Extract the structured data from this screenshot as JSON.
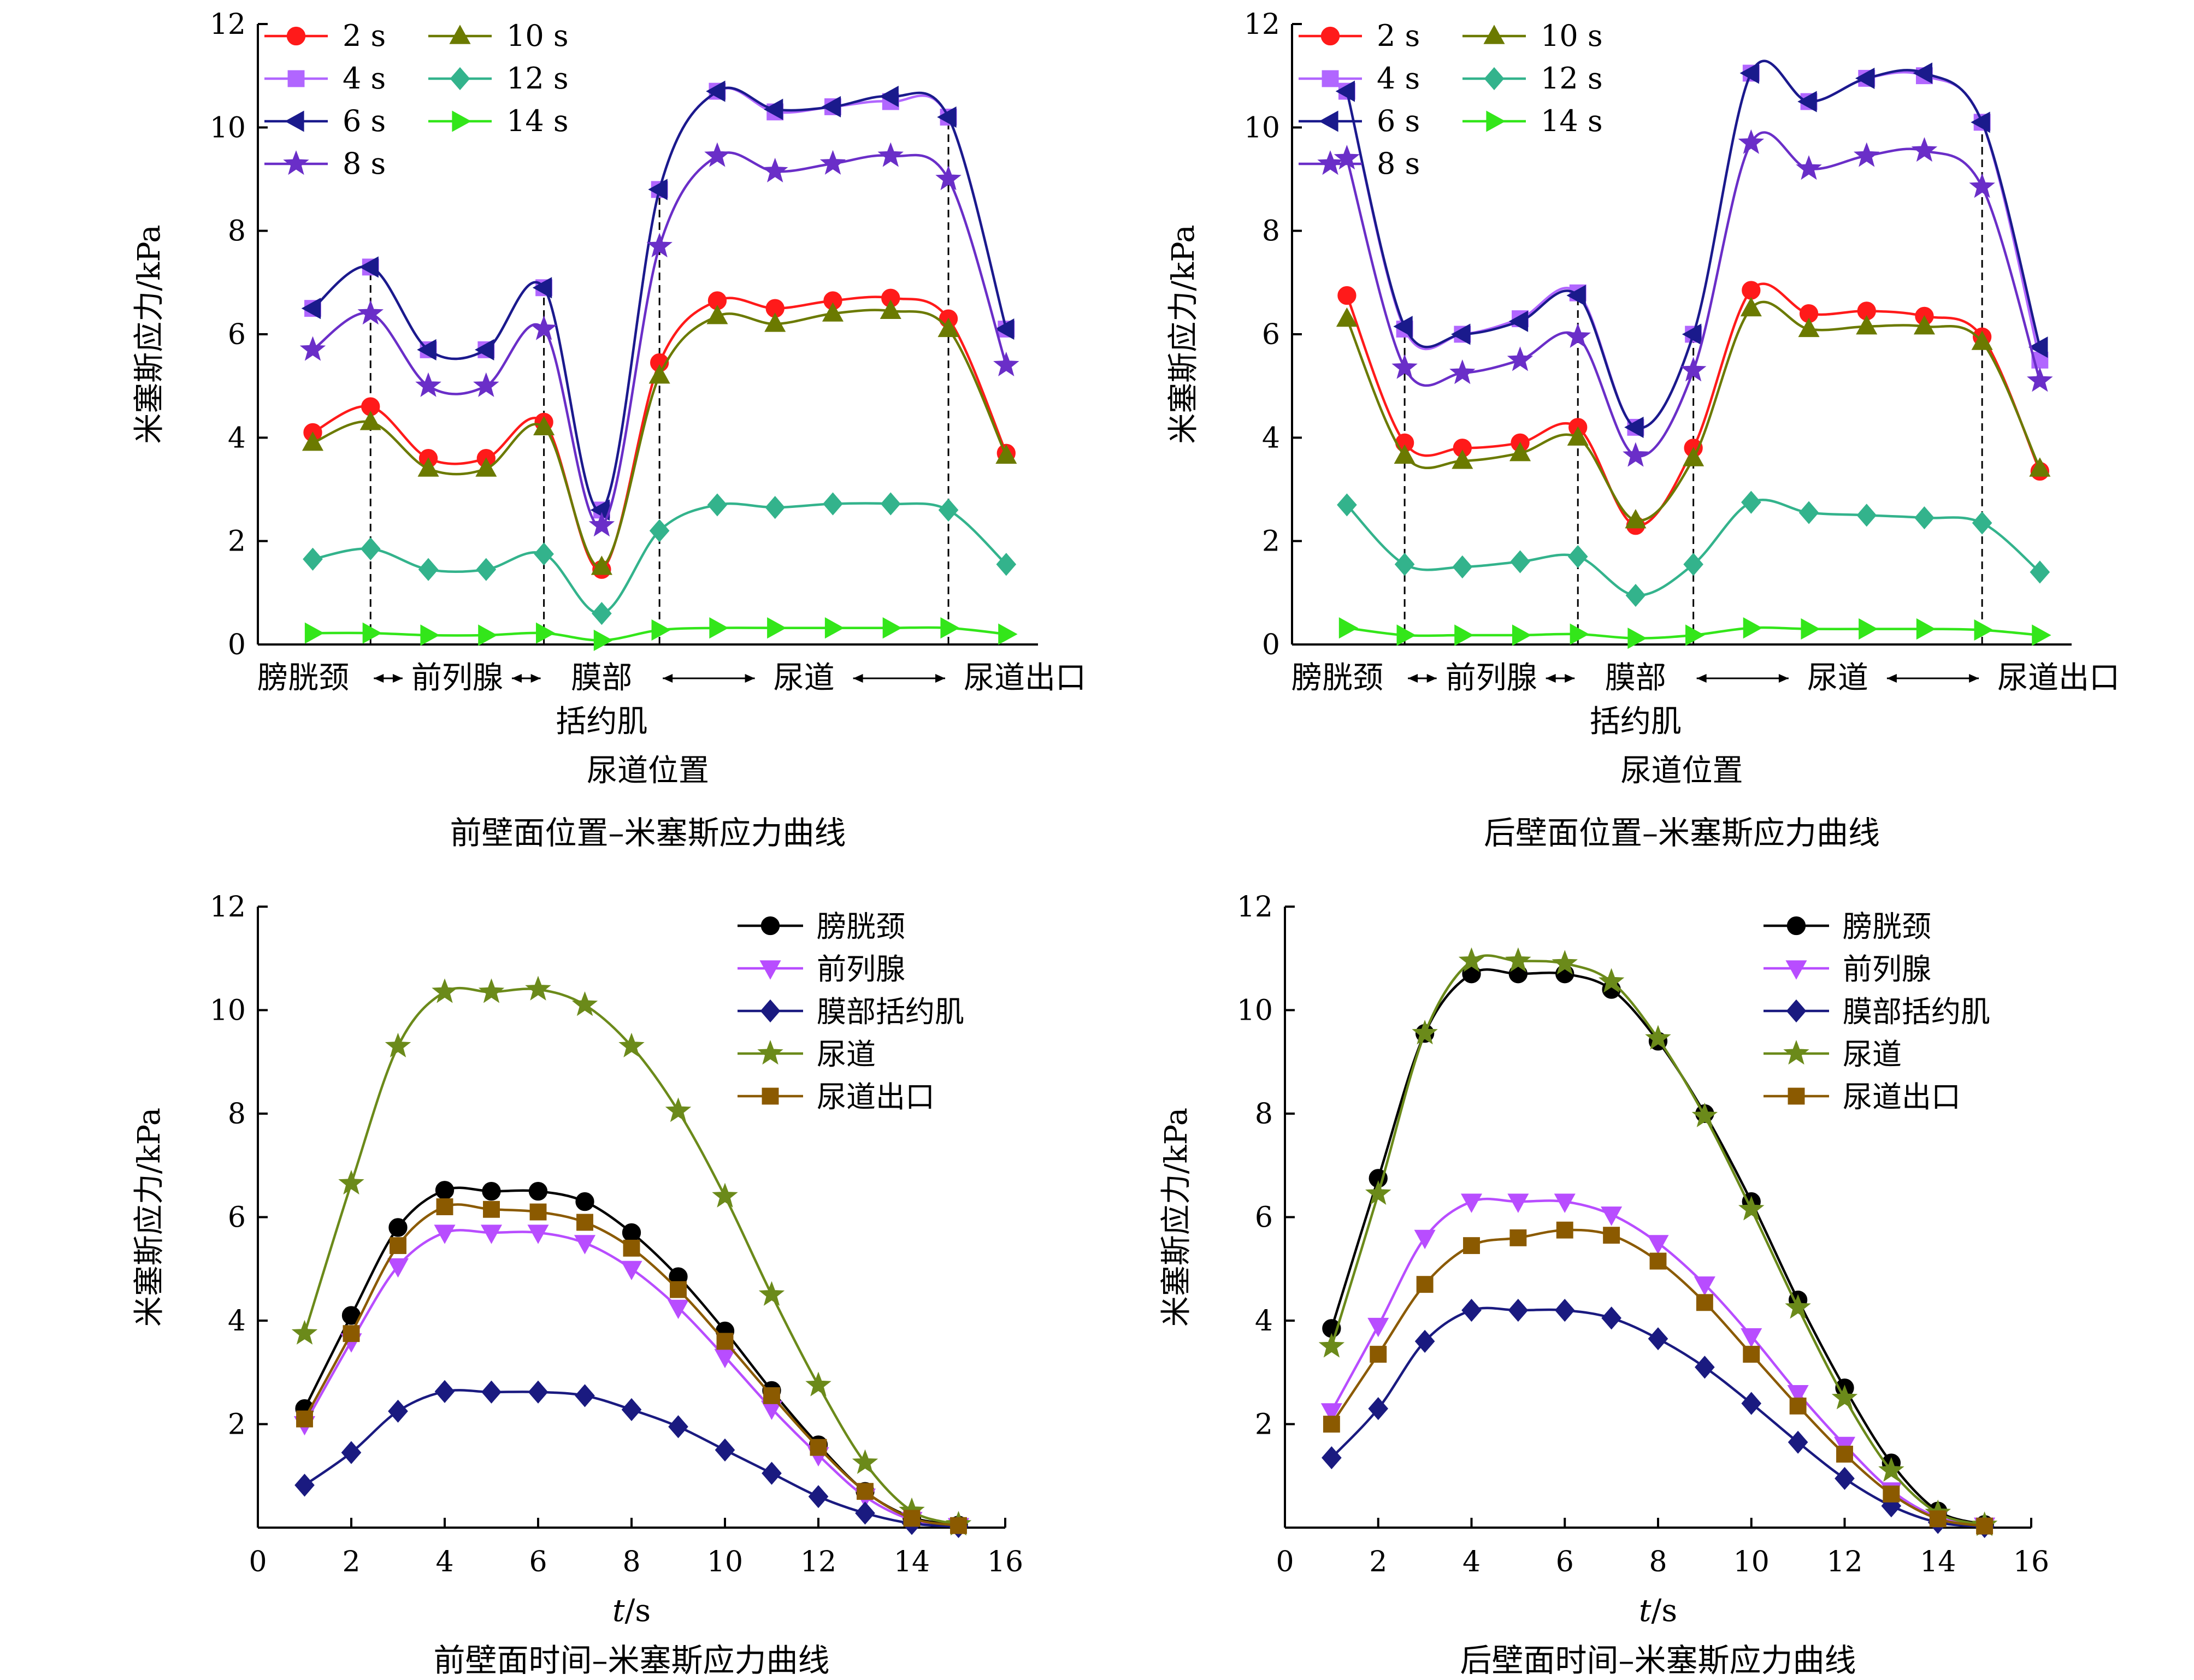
{
  "chart_data": [
    {
      "type": "line",
      "title": "前壁面位置–米塞斯应力曲线",
      "xlabel": "尿道位置",
      "ylabel": "米塞斯应力/kPa",
      "ylim": [
        0,
        12
      ],
      "yticks": [
        "0",
        "2",
        "4",
        "6",
        "8",
        "10",
        "12"
      ],
      "legend": "top-left, two columns",
      "regions": [
        {
          "label": "膀胱颈"
        },
        {
          "label": "前列腺"
        },
        {
          "label": "膜部",
          "label2": "括约肌"
        },
        {
          "label": "尿道"
        },
        {
          "label": "尿道出口"
        }
      ],
      "region_boundaries": [
        2,
        5,
        7,
        12
      ],
      "x": [
        1,
        2,
        3,
        4,
        5,
        6,
        7,
        8,
        9,
        10,
        11,
        12,
        13
      ],
      "series": [
        {
          "name": "2 s",
          "color": "#ff1a1a",
          "marker": "circle",
          "values": [
            4.1,
            4.6,
            3.6,
            3.6,
            4.3,
            1.45,
            5.45,
            6.65,
            6.5,
            6.65,
            6.7,
            6.3,
            3.7
          ]
        },
        {
          "name": "4 s",
          "color": "#b166ff",
          "marker": "square",
          "values": [
            6.5,
            7.3,
            5.7,
            5.7,
            6.9,
            2.6,
            8.8,
            10.7,
            10.3,
            10.4,
            10.5,
            10.2,
            6.1
          ]
        },
        {
          "name": "6 s",
          "color": "#1a1a8c",
          "marker": "triangle-left",
          "values": [
            6.5,
            7.3,
            5.7,
            5.7,
            6.9,
            2.6,
            8.8,
            10.7,
            10.35,
            10.4,
            10.6,
            10.2,
            6.1
          ]
        },
        {
          "name": "8 s",
          "color": "#6a2ec8",
          "marker": "star",
          "values": [
            5.7,
            6.4,
            5.0,
            5.0,
            6.1,
            2.3,
            7.7,
            9.45,
            9.15,
            9.3,
            9.45,
            9.0,
            5.4
          ]
        },
        {
          "name": "10 s",
          "color": "#6b7a00",
          "marker": "triangle-up",
          "values": [
            3.9,
            4.3,
            3.4,
            3.4,
            4.2,
            1.5,
            5.2,
            6.35,
            6.2,
            6.4,
            6.45,
            6.1,
            3.65
          ]
        },
        {
          "name": "12 s",
          "color": "#33b38c",
          "marker": "diamond",
          "values": [
            1.65,
            1.85,
            1.45,
            1.45,
            1.75,
            0.6,
            2.2,
            2.7,
            2.65,
            2.72,
            2.72,
            2.6,
            1.55
          ]
        },
        {
          "name": "14 s",
          "color": "#33e61a",
          "marker": "triangle-right",
          "values": [
            0.22,
            0.22,
            0.18,
            0.18,
            0.22,
            0.08,
            0.28,
            0.32,
            0.32,
            0.32,
            0.32,
            0.32,
            0.2
          ]
        }
      ]
    },
    {
      "type": "line",
      "title": "后壁面位置–米塞斯应力曲线",
      "xlabel": "尿道位置",
      "ylabel": "米塞斯应力/kPa",
      "ylim": [
        0,
        12
      ],
      "yticks": [
        "0",
        "2",
        "4",
        "6",
        "8",
        "10",
        "12"
      ],
      "legend": "top-left, two columns",
      "regions": [
        {
          "label": "膀胱颈"
        },
        {
          "label": "前列腺"
        },
        {
          "label": "膜部",
          "label2": "括约肌"
        },
        {
          "label": "尿道"
        },
        {
          "label": "尿道出口"
        }
      ],
      "region_boundaries": [
        2,
        5,
        7,
        12
      ],
      "x": [
        1,
        2,
        3,
        4,
        5,
        6,
        7,
        8,
        9,
        10,
        11,
        12,
        13
      ],
      "series": [
        {
          "name": "2 s",
          "color": "#ff1a1a",
          "marker": "circle",
          "values": [
            6.75,
            3.9,
            3.8,
            3.9,
            4.2,
            2.3,
            3.8,
            6.85,
            6.4,
            6.45,
            6.35,
            5.95,
            3.35
          ]
        },
        {
          "name": "4 s",
          "color": "#b166ff",
          "marker": "square",
          "values": [
            10.7,
            6.1,
            6.0,
            6.3,
            6.8,
            4.2,
            6.0,
            11.05,
            10.5,
            10.95,
            11.0,
            10.1,
            5.5
          ]
        },
        {
          "name": "6 s",
          "color": "#1a1a8c",
          "marker": "triangle-left",
          "values": [
            10.7,
            6.15,
            6.0,
            6.25,
            6.75,
            4.2,
            6.0,
            11.05,
            10.5,
            10.95,
            11.05,
            10.1,
            5.75
          ]
        },
        {
          "name": "8 s",
          "color": "#6a2ec8",
          "marker": "star",
          "values": [
            9.4,
            5.35,
            5.25,
            5.5,
            5.95,
            3.65,
            5.3,
            9.7,
            9.2,
            9.45,
            9.55,
            8.85,
            5.1
          ]
        },
        {
          "name": "10 s",
          "color": "#6b7a00",
          "marker": "triangle-up",
          "values": [
            6.3,
            3.65,
            3.55,
            3.7,
            4.0,
            2.4,
            3.6,
            6.5,
            6.1,
            6.15,
            6.15,
            5.85,
            3.4
          ]
        },
        {
          "name": "12 s",
          "color": "#33b38c",
          "marker": "diamond",
          "values": [
            2.7,
            1.55,
            1.5,
            1.6,
            1.7,
            0.95,
            1.55,
            2.75,
            2.55,
            2.5,
            2.45,
            2.35,
            1.4
          ]
        },
        {
          "name": "14 s",
          "color": "#33e61a",
          "marker": "triangle-right",
          "values": [
            0.32,
            0.18,
            0.18,
            0.18,
            0.2,
            0.12,
            0.18,
            0.32,
            0.3,
            0.3,
            0.3,
            0.28,
            0.18
          ]
        }
      ]
    },
    {
      "type": "line",
      "title": "前壁面时间–米塞斯应力曲线",
      "xlabel_italic": "t",
      "xlabel_unit": "/s",
      "ylabel": "米塞斯应力/kPa",
      "xlim": [
        0,
        16
      ],
      "ylim": [
        0,
        12
      ],
      "xticks": [
        "0",
        "2",
        "4",
        "6",
        "8",
        "10",
        "12",
        "14",
        "16"
      ],
      "yticks": [
        "2",
        "4",
        "6",
        "8",
        "10",
        "12"
      ],
      "legend": "top-right",
      "x": [
        1,
        2,
        3,
        4,
        5,
        6,
        7,
        8,
        9,
        10,
        11,
        12,
        13,
        14,
        15
      ],
      "series": [
        {
          "name": "膀胱颈",
          "color": "#000000",
          "marker": "circle",
          "values": [
            2.3,
            4.1,
            5.8,
            6.52,
            6.5,
            6.5,
            6.3,
            5.7,
            4.85,
            3.8,
            2.65,
            1.6,
            0.7,
            0.2,
            0.05
          ]
        },
        {
          "name": "前列腺",
          "color": "#b84dff",
          "marker": "triangle-down",
          "values": [
            2.0,
            3.6,
            5.05,
            5.7,
            5.7,
            5.7,
            5.5,
            5.0,
            4.25,
            3.3,
            2.3,
            1.4,
            0.6,
            0.15,
            0.03
          ]
        },
        {
          "name": "膜部括约肌",
          "color": "#1a1a80",
          "marker": "diamond",
          "values": [
            0.82,
            1.45,
            2.25,
            2.63,
            2.62,
            2.62,
            2.55,
            2.28,
            1.95,
            1.5,
            1.05,
            0.6,
            0.28,
            0.08,
            0.02
          ]
        },
        {
          "name": "尿道",
          "color": "#6b8a1a",
          "marker": "star",
          "values": [
            3.75,
            6.65,
            9.3,
            10.35,
            10.35,
            10.4,
            10.1,
            9.3,
            8.05,
            6.4,
            4.5,
            2.75,
            1.25,
            0.32,
            0.06
          ]
        },
        {
          "name": "尿道出口",
          "color": "#8b5a00",
          "marker": "square",
          "values": [
            2.1,
            3.75,
            5.45,
            6.2,
            6.15,
            6.1,
            5.9,
            5.4,
            4.6,
            3.6,
            2.55,
            1.55,
            0.7,
            0.18,
            0.04
          ]
        }
      ]
    },
    {
      "type": "line",
      "title": "后壁面时间–米塞斯应力曲线",
      "xlabel_italic": "t",
      "xlabel_unit": "/s",
      "ylabel": "米塞斯应力/kPa",
      "xlim": [
        0,
        16
      ],
      "ylim": [
        0,
        12
      ],
      "xticks": [
        "0",
        "2",
        "4",
        "6",
        "8",
        "10",
        "12",
        "14",
        "16"
      ],
      "yticks": [
        "2",
        "4",
        "6",
        "8",
        "10",
        "12"
      ],
      "legend": "top-right",
      "x": [
        1,
        2,
        3,
        4,
        5,
        6,
        7,
        8,
        9,
        10,
        11,
        12,
        13,
        14,
        15
      ],
      "series": [
        {
          "name": "膀胱颈",
          "color": "#000000",
          "marker": "circle",
          "values": [
            3.85,
            6.75,
            9.55,
            10.7,
            10.7,
            10.7,
            10.4,
            9.4,
            8.0,
            6.3,
            4.4,
            2.7,
            1.25,
            0.32,
            0.06
          ]
        },
        {
          "name": "前列腺",
          "color": "#b84dff",
          "marker": "triangle-down",
          "values": [
            2.25,
            3.9,
            5.6,
            6.3,
            6.3,
            6.3,
            6.05,
            5.5,
            4.7,
            3.7,
            2.6,
            1.6,
            0.72,
            0.2,
            0.04
          ]
        },
        {
          "name": "膜部括约肌",
          "color": "#1a1a80",
          "marker": "diamond",
          "values": [
            1.35,
            2.3,
            3.6,
            4.2,
            4.2,
            4.2,
            4.05,
            3.65,
            3.1,
            2.4,
            1.65,
            0.95,
            0.42,
            0.1,
            0.02
          ]
        },
        {
          "name": "尿道",
          "color": "#6b8a1a",
          "marker": "star",
          "values": [
            3.5,
            6.45,
            9.55,
            10.95,
            10.95,
            10.9,
            10.55,
            9.45,
            7.95,
            6.15,
            4.25,
            2.5,
            1.1,
            0.28,
            0.05
          ]
        },
        {
          "name": "尿道出口",
          "color": "#8b5a00",
          "marker": "square",
          "values": [
            2.0,
            3.35,
            4.7,
            5.45,
            5.6,
            5.75,
            5.65,
            5.15,
            4.35,
            3.35,
            2.35,
            1.42,
            0.65,
            0.17,
            0.03
          ]
        }
      ]
    }
  ]
}
